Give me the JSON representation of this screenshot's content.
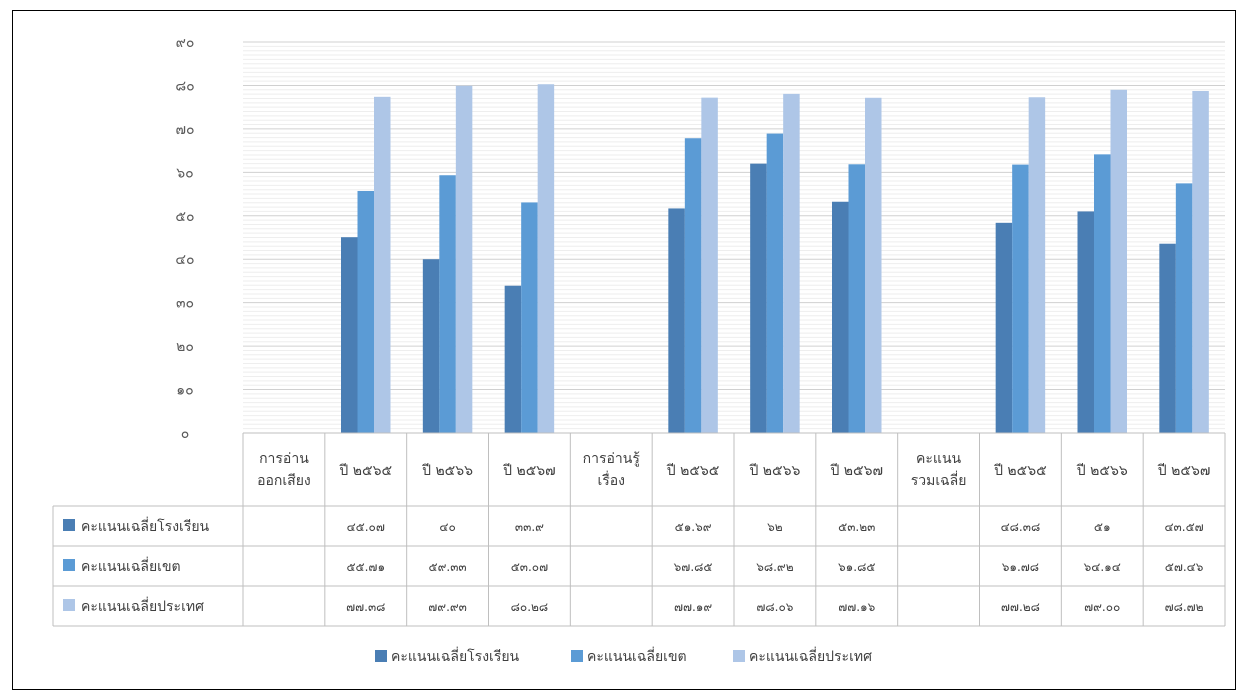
{
  "chart_data": {
    "type": "bar",
    "categories": [
      [
        "การอ่าน",
        "ออกเสียง"
      ],
      [
        "ปี ๒๕๖๕"
      ],
      [
        "ปี ๒๕๖๖"
      ],
      [
        "ปี ๒๕๖๗"
      ],
      [
        "การอ่านรู้",
        "เรื่อง"
      ],
      [
        "ปี ๒๕๖๕"
      ],
      [
        "ปี ๒๕๖๖"
      ],
      [
        "ปี ๒๕๖๗"
      ],
      [
        "คะแนน",
        "รวมเฉลี่ย"
      ],
      [
        "ปี ๒๕๖๕"
      ],
      [
        "ปี ๒๕๖๖"
      ],
      [
        "ปี ๒๕๖๗"
      ]
    ],
    "series": [
      {
        "name": "คะแนนเฉลี่ยโรงเรียน",
        "color": "#4a7eb4",
        "values": [
          null,
          45.07,
          40,
          33.9,
          null,
          51.69,
          62,
          53.23,
          null,
          48.38,
          51,
          43.57
        ],
        "labels": [
          "",
          "๔๕.๐๗",
          "๔๐",
          "๓๓.๙",
          "",
          "๕๑.๖๙",
          "๖๒",
          "๕๓.๒๓",
          "",
          "๔๘.๓๘",
          "๕๑",
          "๔๓.๕๗"
        ]
      },
      {
        "name": "คะแนนเฉลี่ยเขต",
        "color": "#5b9bd5",
        "values": [
          null,
          55.71,
          59.33,
          53.07,
          null,
          67.85,
          68.92,
          61.85,
          null,
          61.78,
          64.14,
          57.46
        ],
        "labels": [
          "",
          "๕๕.๗๑",
          "๕๙.๓๓",
          "๕๓.๐๗",
          "",
          "๖๗.๘๕",
          "๖๘.๙๒",
          "๖๑.๘๕",
          "",
          "๖๑.๗๘",
          "๖๔.๑๔",
          "๕๗.๔๖"
        ]
      },
      {
        "name": "คะแนนเฉลี่ยประเทศ",
        "color": "#aec6e7",
        "values": [
          null,
          77.38,
          79.93,
          80.28,
          null,
          77.19,
          78.06,
          77.16,
          null,
          77.28,
          79.0,
          78.72
        ],
        "labels": [
          "",
          "๗๗.๓๘",
          "๗๙.๙๓",
          "๘๐.๒๘",
          "",
          "๗๗.๑๙",
          "๗๘.๐๖",
          "๗๗.๑๖",
          "",
          "๗๗.๒๘",
          "๗๙.๐๐",
          "๗๘.๗๒"
        ]
      }
    ],
    "ylim": [
      0,
      90
    ],
    "yticks": [
      0,
      10,
      20,
      30,
      40,
      50,
      60,
      70,
      80,
      90
    ],
    "ytick_labels": [
      "๐",
      "๑๐",
      "๒๐",
      "๓๐",
      "๔๐",
      "๕๐",
      "๖๐",
      "๗๐",
      "๘๐",
      "๙๐"
    ],
    "grid": true,
    "legend": "bottom",
    "data_table": true
  }
}
